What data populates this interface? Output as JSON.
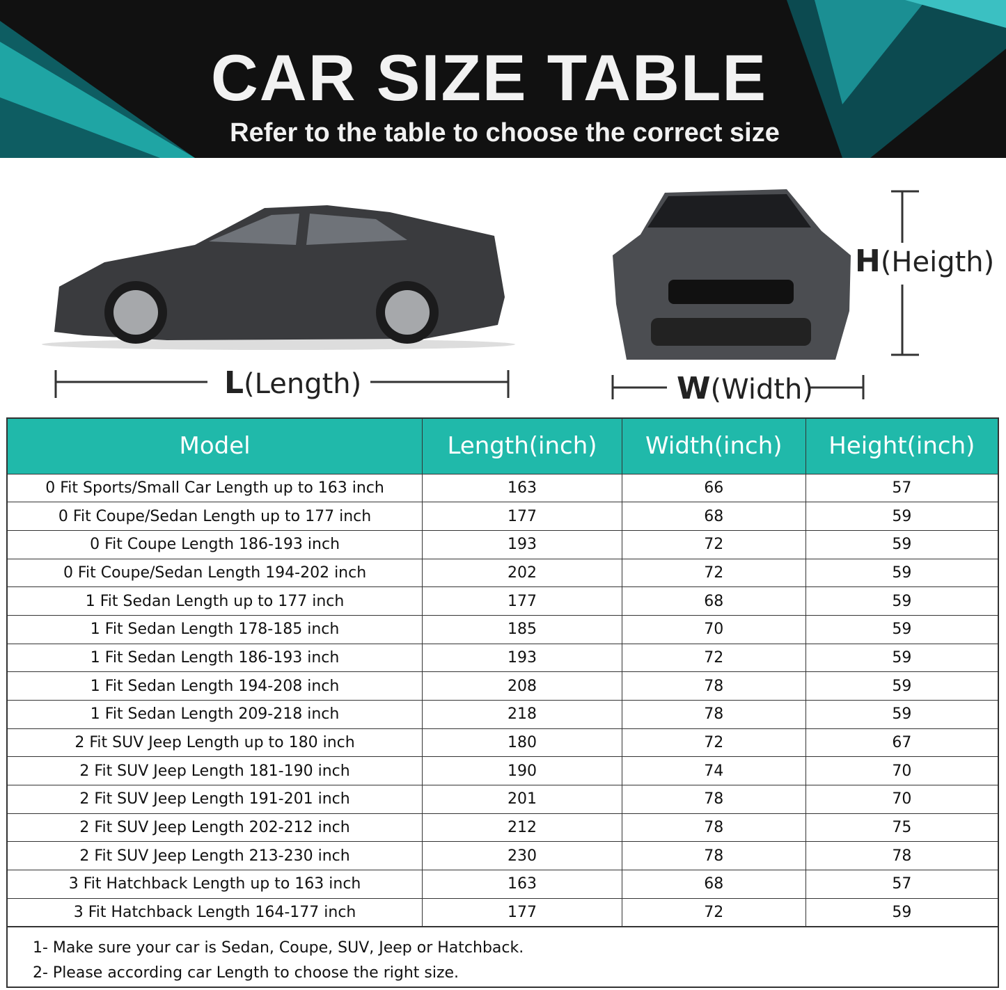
{
  "header": {
    "title": "CAR SIZE TABLE",
    "subtitle": "Refer to the table to choose the correct size"
  },
  "colors": {
    "accent": "#20b9aa",
    "banner": "#111111"
  },
  "dimensions": {
    "length": {
      "letter": "L",
      "word": "(Length)"
    },
    "width": {
      "letter": "W",
      "word": "(Width)"
    },
    "height": {
      "letter": "H",
      "word": "(Heigth)"
    }
  },
  "table": {
    "columns": [
      "Model",
      "Length(inch)",
      "Width(inch)",
      "Height(inch)"
    ],
    "rows": [
      [
        "0 Fit Sports/Small Car Length up to 163 inch",
        "163",
        "66",
        "57"
      ],
      [
        "0 Fit Coupe/Sedan Length up to 177 inch",
        "177",
        "68",
        "59"
      ],
      [
        "0 Fit Coupe Length 186-193 inch",
        "193",
        "72",
        "59"
      ],
      [
        "0 Fit Coupe/Sedan Length 194-202 inch",
        "202",
        "72",
        "59"
      ],
      [
        "1 Fit Sedan Length up to 177 inch",
        "177",
        "68",
        "59"
      ],
      [
        "1 Fit Sedan Length 178-185 inch",
        "185",
        "70",
        "59"
      ],
      [
        "1 Fit Sedan Length 186-193 inch",
        "193",
        "72",
        "59"
      ],
      [
        "1 Fit Sedan Length 194-208 inch",
        "208",
        "78",
        "59"
      ],
      [
        "1 Fit Sedan Length 209-218 inch",
        "218",
        "78",
        "59"
      ],
      [
        "2 Fit SUV Jeep Length up to 180 inch",
        "180",
        "72",
        "67"
      ],
      [
        "2 Fit SUV Jeep Length 181-190 inch",
        "190",
        "74",
        "70"
      ],
      [
        "2 Fit SUV Jeep Length 191-201 inch",
        "201",
        "78",
        "70"
      ],
      [
        "2 Fit SUV Jeep Length 202-212 inch",
        "212",
        "78",
        "75"
      ],
      [
        "2 Fit SUV Jeep Length 213-230 inch",
        "230",
        "78",
        "78"
      ],
      [
        "3 Fit Hatchback Length up to 163 inch",
        "163",
        "68",
        "57"
      ],
      [
        "3 Fit Hatchback Length 164-177 inch",
        "177",
        "72",
        "59"
      ]
    ]
  },
  "notes": [
    "1- Make sure your car is Sedan, Coupe, SUV, Jeep or Hatchback.",
    "2- Please according car Length to choose the right size."
  ]
}
